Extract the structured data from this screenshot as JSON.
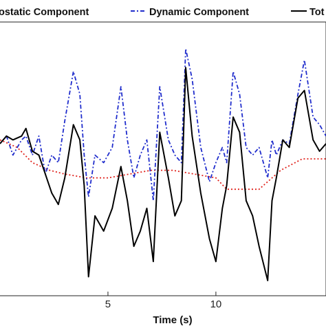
{
  "chart_data": {
    "type": "line",
    "xlabel": "Time (s)",
    "ylabel": "",
    "xlim": [
      0.0,
      15.1
    ],
    "ylim": [
      -1.75,
      1.85
    ],
    "grid": false,
    "x_ticks": [
      5,
      10
    ],
    "legend": {
      "placement": "top",
      "entries": [
        "ostatic Component",
        "Dynamic Component",
        "Tot"
      ]
    },
    "series": [
      {
        "name": "ostatic Component",
        "color": "#e0201a",
        "style": "dotted",
        "x": [
          0.0,
          0.8,
          1.5,
          2.3,
          3.0,
          4.0,
          5.0,
          6.0,
          7.0,
          8.0,
          9.0,
          10.0,
          10.5,
          11.0,
          11.5,
          12.0,
          13.0,
          14.0,
          15.1
        ],
        "values": [
          0.3,
          0.2,
          0.0,
          -0.1,
          -0.15,
          -0.2,
          -0.2,
          -0.15,
          -0.1,
          -0.1,
          -0.15,
          -0.2,
          -0.35,
          -0.35,
          -0.35,
          -0.35,
          -0.1,
          0.05,
          0.05
        ]
      },
      {
        "name": "Dynamic Component",
        "color": "#1f2ccc",
        "style": "dashdot",
        "x": [
          0.0,
          0.3,
          0.6,
          1.0,
          1.2,
          1.5,
          1.8,
          2.1,
          2.4,
          2.7,
          3.0,
          3.4,
          3.7,
          3.9,
          4.1,
          4.4,
          4.8,
          5.2,
          5.6,
          5.9,
          6.2,
          6.5,
          6.8,
          7.1,
          7.4,
          7.8,
          8.1,
          8.4,
          8.6,
          8.9,
          9.3,
          9.7,
          10.0,
          10.3,
          10.5,
          10.8,
          11.1,
          11.4,
          11.7,
          12.0,
          12.4,
          12.6,
          12.8,
          13.1,
          13.4,
          13.8,
          14.1,
          14.5,
          14.8,
          15.1
        ],
        "values": [
          0.25,
          0.35,
          0.1,
          0.3,
          0.35,
          0.1,
          0.35,
          -0.15,
          0.1,
          0.0,
          0.55,
          1.2,
          0.9,
          0.1,
          -0.45,
          0.1,
          0.0,
          0.2,
          1.0,
          0.3,
          -0.2,
          0.1,
          0.3,
          -0.5,
          1.0,
          0.3,
          0.1,
          0.0,
          1.5,
          1.1,
          0.2,
          -0.25,
          0.0,
          0.2,
          0.0,
          1.2,
          0.9,
          0.2,
          0.1,
          0.2,
          -0.2,
          0.3,
          0.1,
          0.3,
          0.25,
          0.9,
          1.35,
          0.6,
          0.5,
          0.35
        ]
      },
      {
        "name": "Tot",
        "color": "#000000",
        "style": "solid",
        "x": [
          0.0,
          0.3,
          0.6,
          1.0,
          1.2,
          1.5,
          1.8,
          2.1,
          2.4,
          2.7,
          3.0,
          3.4,
          3.7,
          3.9,
          4.1,
          4.4,
          4.8,
          5.2,
          5.6,
          5.9,
          6.2,
          6.5,
          6.8,
          7.1,
          7.4,
          7.8,
          8.1,
          8.4,
          8.6,
          8.9,
          9.3,
          9.7,
          10.0,
          10.3,
          10.5,
          10.8,
          11.1,
          11.4,
          11.7,
          12.0,
          12.4,
          12.6,
          12.8,
          13.1,
          13.4,
          13.8,
          14.1,
          14.5,
          14.8,
          15.1
        ],
        "values": [
          0.25,
          0.35,
          0.3,
          0.35,
          0.45,
          0.15,
          0.1,
          -0.15,
          -0.4,
          -0.55,
          -0.2,
          0.5,
          0.3,
          -0.3,
          -1.5,
          -0.7,
          -0.9,
          -0.6,
          -0.05,
          -0.5,
          -1.1,
          -0.9,
          -0.6,
          -1.3,
          0.4,
          -0.2,
          -0.7,
          -0.5,
          1.25,
          0.35,
          -0.4,
          -1.0,
          -1.3,
          -0.6,
          -0.3,
          0.6,
          0.4,
          -0.5,
          -0.7,
          -1.1,
          -1.55,
          -0.5,
          -0.2,
          0.3,
          0.2,
          0.85,
          0.95,
          0.3,
          0.15,
          0.25
        ]
      }
    ]
  }
}
